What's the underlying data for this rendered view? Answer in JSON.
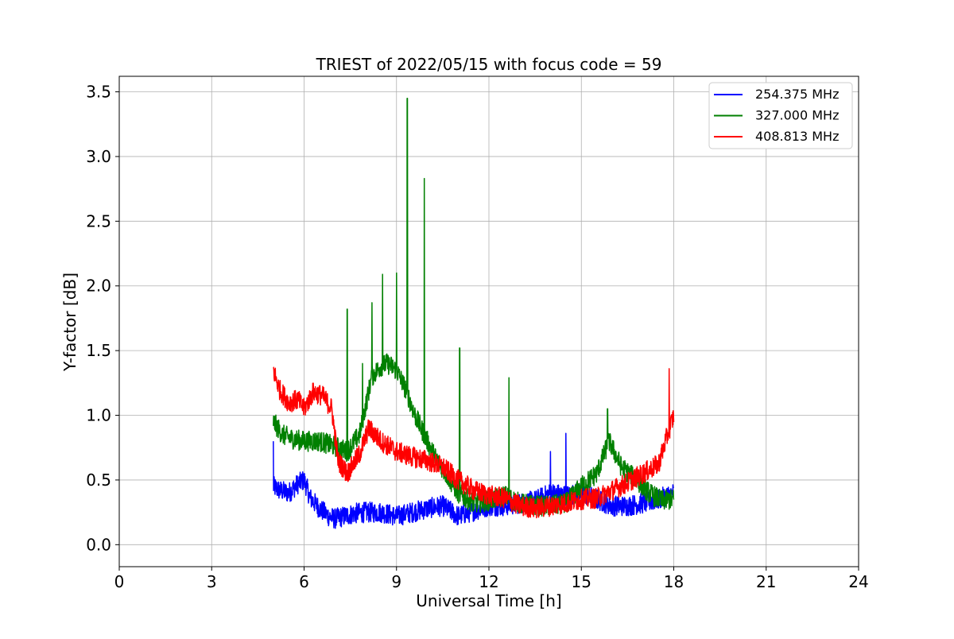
{
  "chart_data": {
    "type": "line",
    "title": "TRIEST of 2022/05/15 with focus code = 59",
    "xlabel": "Universal Time [h]",
    "ylabel": "Y-factor [dB]",
    "xlim": [
      0,
      24
    ],
    "ylim": [
      -0.17,
      3.62
    ],
    "xticks": [
      "0",
      "3",
      "6",
      "9",
      "12",
      "15",
      "18",
      "21",
      "24"
    ],
    "yticks": [
      "0.0",
      "0.5",
      "1.0",
      "1.5",
      "2.0",
      "2.5",
      "3.0",
      "3.5"
    ],
    "grid": true,
    "legend_position": "top-right",
    "series": [
      {
        "name": "254.375 MHz",
        "color": "#0000ff",
        "x": [
          5.0,
          5.2,
          5.5,
          5.8,
          6.0,
          6.2,
          6.5,
          6.8,
          7.0,
          7.3,
          7.6,
          8.0,
          8.5,
          9.0,
          9.5,
          10.0,
          10.5,
          11.0,
          11.5,
          12.0,
          12.5,
          13.0,
          13.5,
          14.0,
          14.5,
          15.0,
          15.5,
          16.0,
          16.5,
          17.0,
          17.5,
          18.0
        ],
        "y": [
          0.45,
          0.42,
          0.4,
          0.47,
          0.5,
          0.36,
          0.28,
          0.22,
          0.2,
          0.22,
          0.24,
          0.25,
          0.25,
          0.22,
          0.25,
          0.28,
          0.3,
          0.22,
          0.26,
          0.3,
          0.3,
          0.32,
          0.34,
          0.4,
          0.38,
          0.4,
          0.35,
          0.3,
          0.3,
          0.32,
          0.35,
          0.4
        ]
      },
      {
        "name": "327.000 MHz",
        "color": "#008000",
        "x": [
          5.0,
          5.3,
          5.6,
          6.0,
          6.5,
          7.0,
          7.4,
          7.8,
          8.2,
          8.5,
          8.7,
          9.0,
          9.3,
          9.6,
          9.9,
          10.2,
          10.6,
          11.0,
          11.5,
          12.0,
          12.5,
          13.0,
          13.5,
          14.0,
          14.5,
          15.0,
          15.5,
          15.9,
          16.3,
          16.8,
          17.2,
          17.6,
          18.0
        ],
        "y": [
          0.95,
          0.85,
          0.82,
          0.8,
          0.8,
          0.76,
          0.72,
          0.85,
          1.3,
          1.38,
          1.4,
          1.35,
          1.2,
          1.0,
          0.85,
          0.7,
          0.55,
          0.4,
          0.32,
          0.34,
          0.38,
          0.32,
          0.3,
          0.3,
          0.32,
          0.45,
          0.55,
          0.8,
          0.6,
          0.5,
          0.4,
          0.34,
          0.35
        ]
      },
      {
        "name": "408.813 MHz",
        "color": "#ff0000",
        "x": [
          5.0,
          5.2,
          5.5,
          5.8,
          6.0,
          6.3,
          6.6,
          6.9,
          7.1,
          7.4,
          7.8,
          8.1,
          8.5,
          9.0,
          9.5,
          10.0,
          10.5,
          11.0,
          11.5,
          12.0,
          12.5,
          13.0,
          13.5,
          14.0,
          14.5,
          15.0,
          15.5,
          16.0,
          16.5,
          17.0,
          17.5,
          17.8,
          18.0
        ],
        "y": [
          1.35,
          1.2,
          1.1,
          1.12,
          1.05,
          1.18,
          1.15,
          1.05,
          0.65,
          0.55,
          0.7,
          0.9,
          0.8,
          0.72,
          0.68,
          0.65,
          0.6,
          0.5,
          0.42,
          0.38,
          0.36,
          0.3,
          0.28,
          0.3,
          0.32,
          0.35,
          0.36,
          0.42,
          0.48,
          0.55,
          0.62,
          0.85,
          1.0
        ]
      }
    ],
    "spikes": [
      {
        "series": 1,
        "x": 7.4,
        "y": 1.82
      },
      {
        "series": 1,
        "x": 7.9,
        "y": 1.4
      },
      {
        "series": 1,
        "x": 8.2,
        "y": 1.87
      },
      {
        "series": 1,
        "x": 8.55,
        "y": 2.09
      },
      {
        "series": 1,
        "x": 9.0,
        "y": 2.1
      },
      {
        "series": 1,
        "x": 9.35,
        "y": 3.45
      },
      {
        "series": 1,
        "x": 9.9,
        "y": 2.83
      },
      {
        "series": 1,
        "x": 11.05,
        "y": 1.52
      },
      {
        "series": 1,
        "x": 12.65,
        "y": 1.29
      },
      {
        "series": 1,
        "x": 15.85,
        "y": 1.05
      },
      {
        "series": 0,
        "x": 5.0,
        "y": 0.8
      },
      {
        "series": 0,
        "x": 14.5,
        "y": 0.86
      },
      {
        "series": 0,
        "x": 14.0,
        "y": 0.72
      },
      {
        "series": 2,
        "x": 17.85,
        "y": 1.36
      }
    ]
  }
}
